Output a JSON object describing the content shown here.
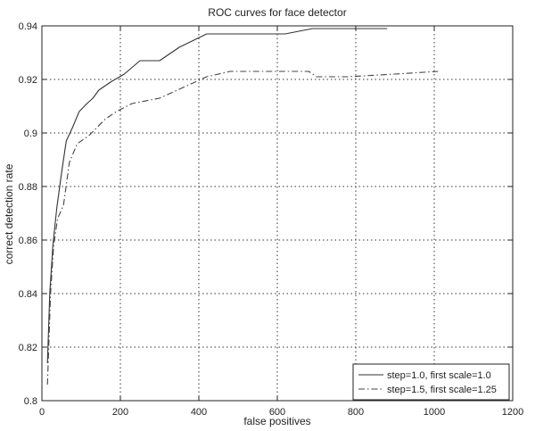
{
  "chart_data": {
    "type": "line",
    "title": "ROC curves for face detector",
    "xlabel": "false positives",
    "ylabel": "correct detection rate",
    "xlim": [
      0,
      1200
    ],
    "ylim": [
      0.8,
      0.94
    ],
    "grid": true,
    "legend_position": "bottom-right",
    "x_ticks": [
      0,
      200,
      400,
      600,
      800,
      1000,
      1200
    ],
    "x_tick_labels": [
      "0",
      "200",
      "400",
      "600",
      "800",
      "1000",
      "1200"
    ],
    "y_ticks": [
      0.8,
      0.82,
      0.84,
      0.86,
      0.88,
      0.9,
      0.92,
      0.94
    ],
    "y_tick_labels": [
      "0.8",
      "0.82",
      "0.84",
      "0.86",
      "0.88",
      "0.9",
      "0.92",
      "0.94"
    ],
    "series": [
      {
        "name": "step=1.0, first scale=1.0",
        "style": "solid",
        "color": "#333333",
        "points": [
          [
            14,
            0.814
          ],
          [
            20,
            0.84
          ],
          [
            28,
            0.858
          ],
          [
            38,
            0.872
          ],
          [
            50,
            0.885
          ],
          [
            62,
            0.897
          ],
          [
            78,
            0.902
          ],
          [
            95,
            0.908
          ],
          [
            115,
            0.911
          ],
          [
            130,
            0.913
          ],
          [
            145,
            0.916
          ],
          [
            175,
            0.919
          ],
          [
            210,
            0.922
          ],
          [
            250,
            0.927
          ],
          [
            300,
            0.927
          ],
          [
            350,
            0.932
          ],
          [
            420,
            0.937
          ],
          [
            500,
            0.937
          ],
          [
            620,
            0.937
          ],
          [
            690,
            0.939
          ],
          [
            880,
            0.939
          ]
        ]
      },
      {
        "name": "step=1.5, first scale=1.25",
        "style": "dashdot",
        "color": "#444444",
        "points": [
          [
            14,
            0.806
          ],
          [
            22,
            0.84
          ],
          [
            30,
            0.858
          ],
          [
            40,
            0.868
          ],
          [
            55,
            0.873
          ],
          [
            70,
            0.889
          ],
          [
            90,
            0.896
          ],
          [
            120,
            0.899
          ],
          [
            160,
            0.905
          ],
          [
            190,
            0.908
          ],
          [
            230,
            0.911
          ],
          [
            300,
            0.913
          ],
          [
            360,
            0.917
          ],
          [
            420,
            0.921
          ],
          [
            480,
            0.923
          ],
          [
            560,
            0.923
          ],
          [
            680,
            0.923
          ],
          [
            700,
            0.921
          ],
          [
            780,
            0.921
          ],
          [
            900,
            0.922
          ],
          [
            1010,
            0.923
          ]
        ]
      }
    ]
  }
}
